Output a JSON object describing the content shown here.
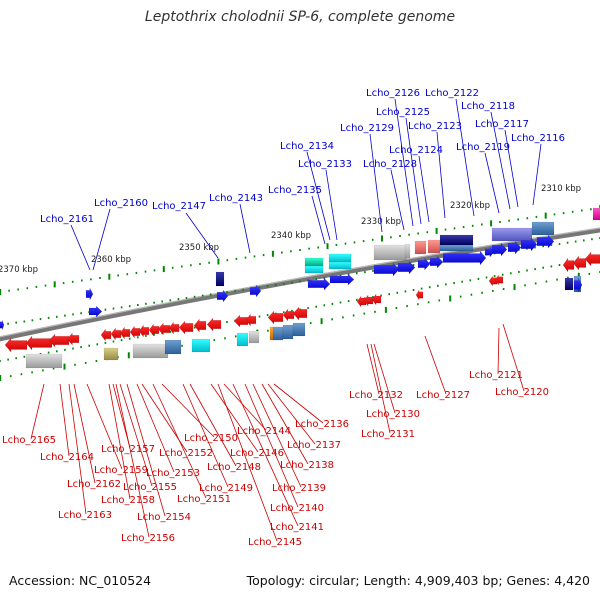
{
  "title": "Leptothrix cholodnii SP-6, complete genome",
  "footer": {
    "accession": "Accession: NC_010524",
    "summary": "Topology: circular; Length: 4,909,403 bp; Genes: 4,420"
  },
  "colors": {
    "positive_label": "#0000cc",
    "negative_label": "#cc0000",
    "tick": "#008800",
    "backbone": "#888888"
  },
  "scale_labels": [
    "2310 kbp",
    "2320 kbp",
    "2330 kbp",
    "2340 kbp",
    "2350 kbp",
    "2360 kbp",
    "2370 kbp"
  ],
  "genes_top": [
    "Lcho_2161",
    "Lcho_2160",
    "Lcho_2147",
    "Lcho_2143",
    "Lcho_2135",
    "Lcho_2134",
    "Lcho_2133",
    "Lcho_2129",
    "Lcho_2128",
    "Lcho_2126",
    "Lcho_2125",
    "Lcho_2124",
    "Lcho_2123",
    "Lcho_2122",
    "Lcho_2119",
    "Lcho_2118",
    "Lcho_2117",
    "Lcho_2116"
  ],
  "genes_bottom": [
    "Lcho_2165",
    "Lcho_2164",
    "Lcho_2163",
    "Lcho_2162",
    "Lcho_2159",
    "Lcho_2158",
    "Lcho_2157",
    "Lcho_2156",
    "Lcho_2155",
    "Lcho_2154",
    "Lcho_2153",
    "Lcho_2152",
    "Lcho_2151",
    "Lcho_2150",
    "Lcho_2149",
    "Lcho_2148",
    "Lcho_2146",
    "Lcho_2145",
    "Lcho_2144",
    "Lcho_2141",
    "Lcho_2140",
    "Lcho_2139",
    "Lcho_2138",
    "Lcho_2137",
    "Lcho_2136",
    "Lcho_2132",
    "Lcho_2131",
    "Lcho_2130",
    "Lcho_2127",
    "Lcho_2121",
    "Lcho_2120"
  ]
}
